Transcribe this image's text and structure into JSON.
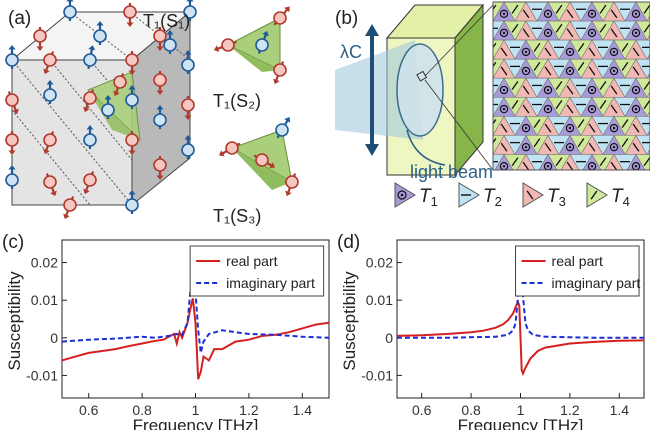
{
  "panel_a": {
    "label": "(a)",
    "sub_t1s1": "T₁(S₁)",
    "sub_t1s2": "T₁(S₂)",
    "sub_t1s3": "T₁(S₃)",
    "colors": {
      "up_spin": "#1f5a99",
      "down_spin": "#b03a2e",
      "up_fill": "#cfe3f3",
      "down_fill": "#f5c7c0",
      "triangle": "#a9cf7c"
    }
  },
  "panel_b": {
    "label": "(b)",
    "lambda_label": "λC",
    "beam_label": "light beam",
    "legend": [
      {
        "symbol": "T",
        "sub": "1",
        "color": "#a99ad9",
        "icon": "dot-circle-icon"
      },
      {
        "symbol": "T",
        "sub": "2",
        "color": "#bfe3f2",
        "icon": "horizontal-arrow-icon"
      },
      {
        "symbol": "T",
        "sub": "3",
        "color": "#f2b8b3",
        "icon": "diagonal-arrow-icon"
      },
      {
        "symbol": "T",
        "sub": "4",
        "color": "#cfe89a",
        "icon": "diagonal-arrow-icon"
      }
    ]
  },
  "panel_c": {
    "label": "(c)",
    "chart_data": {
      "type": "line",
      "xlabel": "Frequency [THz]",
      "ylabel": "Susceptibility",
      "xlim": [
        0.5,
        1.5
      ],
      "ylim": [
        -0.016,
        0.026
      ],
      "xticks": [
        "0.6",
        "0.8",
        "1",
        "1.2",
        "1.4"
      ],
      "xtick_values": [
        0.6,
        0.8,
        1.0,
        1.2,
        1.4
      ],
      "yticks": [
        "0.02",
        "0.01",
        "0",
        "-0.01"
      ],
      "ytick_values": [
        0.02,
        0.01,
        0,
        -0.01
      ],
      "series": [
        {
          "name": "real part",
          "style": "solid",
          "color": "#d62020",
          "x": [
            0.5,
            0.55,
            0.6,
            0.65,
            0.7,
            0.75,
            0.8,
            0.85,
            0.88,
            0.9,
            0.92,
            0.93,
            0.94,
            0.95,
            0.96,
            0.97,
            0.98,
            0.99,
            1.0,
            1.01,
            1.02,
            1.03,
            1.05,
            1.07,
            1.1,
            1.15,
            1.2,
            1.25,
            1.3,
            1.35,
            1.4,
            1.45,
            1.5
          ],
          "y": [
            -0.006,
            -0.005,
            -0.004,
            -0.0035,
            -0.003,
            -0.0022,
            -0.0015,
            -0.0008,
            -0.0005,
            0.0003,
            0.001,
            -0.0015,
            0.0015,
            0.0,
            0.002,
            0.004,
            0.0075,
            0.0105,
            0.004,
            -0.011,
            -0.009,
            -0.005,
            -0.006,
            -0.003,
            -0.003,
            -0.001,
            -0.0005,
            0.0005,
            0.0008,
            0.0015,
            0.0025,
            0.0035,
            0.004
          ]
        },
        {
          "name": "imaginary part",
          "style": "dashed",
          "color": "#1a2fd6",
          "x": [
            0.5,
            0.6,
            0.7,
            0.8,
            0.85,
            0.9,
            0.93,
            0.95,
            0.97,
            0.98,
            0.99,
            1.0,
            1.01,
            1.02,
            1.03,
            1.05,
            1.1,
            1.2,
            1.3,
            1.4,
            1.5
          ],
          "y": [
            -0.001,
            -0.0005,
            -0.0002,
            0.0003,
            0.0,
            0.0005,
            0.001,
            0.0008,
            0.004,
            0.012,
            0.017,
            0.012,
            0.002,
            -0.004,
            -0.001,
            0.001,
            0.002,
            0.001,
            0.0008,
            0.0003,
            0.0
          ]
        }
      ],
      "legend_position": "top-right"
    }
  },
  "panel_d": {
    "label": "(d)",
    "chart_data": {
      "type": "line",
      "xlabel": "Frequency [THz]",
      "ylabel": "Susceptibility",
      "xlim": [
        0.5,
        1.5
      ],
      "ylim": [
        -0.016,
        0.026
      ],
      "xticks": [
        "0.6",
        "0.8",
        "1",
        "1.2",
        "1.4"
      ],
      "xtick_values": [
        0.6,
        0.8,
        1.0,
        1.2,
        1.4
      ],
      "yticks": [
        "0.02",
        "0.01",
        "0",
        "-0.01"
      ],
      "ytick_values": [
        0.02,
        0.01,
        0,
        -0.01
      ],
      "series": [
        {
          "name": "real part",
          "style": "solid",
          "color": "#d62020",
          "x": [
            0.5,
            0.6,
            0.7,
            0.8,
            0.85,
            0.9,
            0.93,
            0.95,
            0.97,
            0.98,
            0.99,
            0.995,
            1.0,
            1.005,
            1.01,
            1.02,
            1.04,
            1.07,
            1.1,
            1.2,
            1.3,
            1.4,
            1.5
          ],
          "y": [
            0.0005,
            0.0007,
            0.001,
            0.0015,
            0.0019,
            0.0027,
            0.0036,
            0.0047,
            0.0065,
            0.0082,
            0.0095,
            0.0085,
            0.0,
            -0.0085,
            -0.0095,
            -0.008,
            -0.0055,
            -0.0035,
            -0.0026,
            -0.0015,
            -0.0011,
            -0.0008,
            -0.0007
          ]
        },
        {
          "name": "imaginary part",
          "style": "dashed",
          "color": "#1a2fd6",
          "x": [
            0.5,
            0.7,
            0.9,
            0.95,
            0.97,
            0.98,
            0.99,
            0.995,
            1.0,
            1.005,
            1.01,
            1.02,
            1.03,
            1.05,
            1.1,
            1.3,
            1.5
          ],
          "y": [
            0.0,
            0.0,
            0.0003,
            0.0008,
            0.002,
            0.004,
            0.011,
            0.0165,
            0.02,
            0.0165,
            0.011,
            0.004,
            0.002,
            0.0008,
            0.0003,
            0.0,
            0.0
          ]
        }
      ],
      "legend_position": "top-right"
    }
  }
}
